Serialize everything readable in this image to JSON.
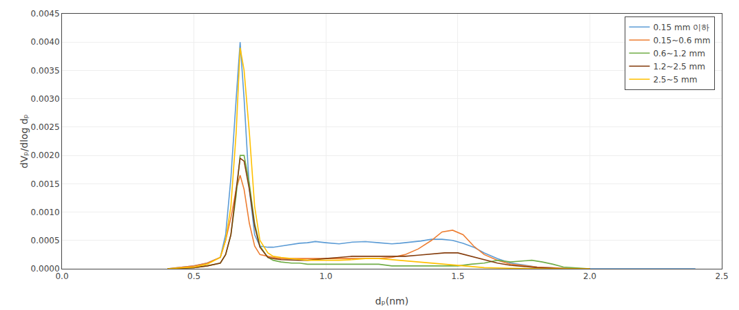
{
  "chart_data": {
    "type": "line",
    "xlabel": "dₚ(nm)",
    "ylabel": "dVₚ/dlog dₚ",
    "xlim": [
      0,
      2.5
    ],
    "ylim": [
      0,
      0.0045
    ],
    "xticks": [
      {
        "value": 0,
        "label": "0.0"
      },
      0.5,
      {
        "value": 1,
        "label": "1.0"
      },
      1.5,
      {
        "value": 2,
        "label": "2.0"
      },
      2.5
    ],
    "yticks": [
      {
        "value": 0,
        "label": "0.0000"
      },
      {
        "value": 0.0005,
        "label": "0.0005"
      },
      {
        "value": 0.001,
        "label": "0.0010"
      },
      {
        "value": 0.0015,
        "label": "0.0015"
      },
      {
        "value": 0.002,
        "label": "0.0020"
      },
      {
        "value": 0.0025,
        "label": "0.0025"
      },
      {
        "value": 0.003,
        "label": "0.0030"
      },
      {
        "value": 0.0035,
        "label": "0.0035"
      },
      {
        "value": 0.004,
        "label": "0.0040"
      },
      {
        "value": 0.0045,
        "label": "0.0045"
      }
    ],
    "grid": true,
    "legend": "upper right",
    "series": [
      {
        "name": "0.15 mm 이하",
        "color": "#5B9BD5",
        "x": [
          0.4,
          0.5,
          0.55,
          0.6,
          0.62,
          0.64,
          0.66,
          0.675,
          0.69,
          0.71,
          0.73,
          0.75,
          0.78,
          0.8,
          0.83,
          0.87,
          0.9,
          0.93,
          0.96,
          1.0,
          1.05,
          1.1,
          1.15,
          1.2,
          1.25,
          1.28,
          1.32,
          1.36,
          1.4,
          1.44,
          1.48,
          1.52,
          1.56,
          1.6,
          1.65,
          1.7,
          1.8,
          1.9,
          2.0,
          2.2,
          2.4
        ],
        "values": [
          0.0,
          5e-05,
          0.0001,
          0.0002,
          0.0006,
          0.0016,
          0.003,
          0.004,
          0.003,
          0.0014,
          0.0006,
          0.0004,
          0.00038,
          0.00038,
          0.0004,
          0.00043,
          0.00045,
          0.00046,
          0.00048,
          0.00046,
          0.00044,
          0.00047,
          0.00048,
          0.00046,
          0.00044,
          0.00045,
          0.00047,
          0.00049,
          0.00052,
          0.00052,
          0.0005,
          0.00045,
          0.00038,
          0.00028,
          0.00018,
          0.0001,
          3e-05,
          1e-05,
          0.0,
          0.0,
          0.0
        ]
      },
      {
        "name": "0.15~0.6 mm",
        "color": "#ED7D31",
        "x": [
          0.4,
          0.5,
          0.55,
          0.6,
          0.62,
          0.64,
          0.66,
          0.675,
          0.69,
          0.71,
          0.73,
          0.75,
          0.78,
          0.8,
          0.83,
          0.87,
          0.9,
          0.93,
          0.96,
          1.0,
          1.05,
          1.1,
          1.15,
          1.2,
          1.25,
          1.3,
          1.35,
          1.4,
          1.44,
          1.48,
          1.52,
          1.56,
          1.6,
          1.65,
          1.7,
          1.8,
          1.9,
          2.0
        ],
        "values": [
          0.0,
          5e-05,
          0.0001,
          0.0002,
          0.0005,
          0.0009,
          0.0014,
          0.00165,
          0.0014,
          0.0008,
          0.0004,
          0.00025,
          0.00022,
          0.0002,
          0.00018,
          0.00018,
          0.00018,
          0.00018,
          0.00018,
          0.00018,
          0.00018,
          0.00018,
          0.00018,
          0.00018,
          0.0002,
          0.00025,
          0.00035,
          0.0005,
          0.00065,
          0.00068,
          0.0006,
          0.0004,
          0.00025,
          0.00015,
          8e-05,
          3e-05,
          1e-05,
          0.0
        ]
      },
      {
        "name": "0.6~1.2 mm",
        "color": "#70AD47",
        "x": [
          0.4,
          0.5,
          0.55,
          0.6,
          0.62,
          0.64,
          0.66,
          0.675,
          0.69,
          0.71,
          0.73,
          0.75,
          0.78,
          0.8,
          0.83,
          0.87,
          0.9,
          0.93,
          0.96,
          1.0,
          1.05,
          1.1,
          1.15,
          1.2,
          1.25,
          1.3,
          1.35,
          1.4,
          1.45,
          1.5,
          1.55,
          1.6,
          1.65,
          1.7,
          1.78,
          1.82,
          1.86,
          1.9,
          2.0
        ],
        "values": [
          0.0,
          2e-05,
          5e-05,
          0.0001,
          0.00025,
          0.0006,
          0.0013,
          0.002,
          0.002,
          0.0015,
          0.0008,
          0.0004,
          0.0002,
          0.00015,
          0.00012,
          0.0001,
          0.0001,
          8e-05,
          8e-05,
          8e-05,
          8e-05,
          8e-05,
          8e-05,
          8e-05,
          5e-05,
          5e-05,
          5e-05,
          5e-05,
          5e-05,
          5e-05,
          8e-05,
          0.0001,
          0.00015,
          0.00012,
          0.00015,
          0.00012,
          8e-05,
          3e-05,
          0.0
        ]
      },
      {
        "name": "1.2~2.5 mm",
        "color": "#843C0C",
        "x": [
          0.4,
          0.5,
          0.55,
          0.6,
          0.62,
          0.64,
          0.66,
          0.675,
          0.69,
          0.71,
          0.73,
          0.75,
          0.78,
          0.8,
          0.83,
          0.87,
          0.9,
          0.93,
          0.96,
          1.0,
          1.05,
          1.1,
          1.15,
          1.2,
          1.25,
          1.3,
          1.35,
          1.4,
          1.45,
          1.5,
          1.55,
          1.6,
          1.65,
          1.7,
          1.8,
          1.9,
          2.0
        ],
        "values": [
          0.0,
          2e-05,
          5e-05,
          0.0001,
          0.00025,
          0.0006,
          0.0014,
          0.00195,
          0.0019,
          0.0014,
          0.00075,
          0.00038,
          0.0002,
          0.00018,
          0.00016,
          0.00015,
          0.00015,
          0.00015,
          0.00016,
          0.00018,
          0.0002,
          0.00022,
          0.00022,
          0.00022,
          0.00022,
          0.00022,
          0.00024,
          0.00026,
          0.00028,
          0.00028,
          0.00022,
          0.00016,
          0.0001,
          6e-05,
          2e-05,
          0.0,
          0.0
        ]
      },
      {
        "name": "2.5~5 mm",
        "color": "#FFC000",
        "x": [
          0.4,
          0.5,
          0.55,
          0.6,
          0.62,
          0.64,
          0.66,
          0.675,
          0.69,
          0.71,
          0.73,
          0.75,
          0.78,
          0.8,
          0.83,
          0.87,
          0.9,
          0.93,
          0.96,
          1.0,
          1.05,
          1.1,
          1.15,
          1.2,
          1.25,
          1.3,
          1.35,
          1.4,
          1.45,
          1.5,
          1.55,
          1.6,
          1.7,
          1.8,
          1.9,
          2.0
        ],
        "values": [
          0.0,
          3e-05,
          8e-05,
          0.0002,
          0.0005,
          0.0011,
          0.0024,
          0.0039,
          0.0035,
          0.0024,
          0.0011,
          0.0005,
          0.00028,
          0.00022,
          0.0002,
          0.00018,
          0.00016,
          0.00015,
          0.00015,
          0.00015,
          0.00015,
          0.00016,
          0.00018,
          0.00018,
          0.00016,
          0.00014,
          0.00012,
          0.0001,
          8e-05,
          6e-05,
          4e-05,
          2e-05,
          1e-05,
          0.0,
          0.0,
          0.0
        ]
      }
    ]
  }
}
